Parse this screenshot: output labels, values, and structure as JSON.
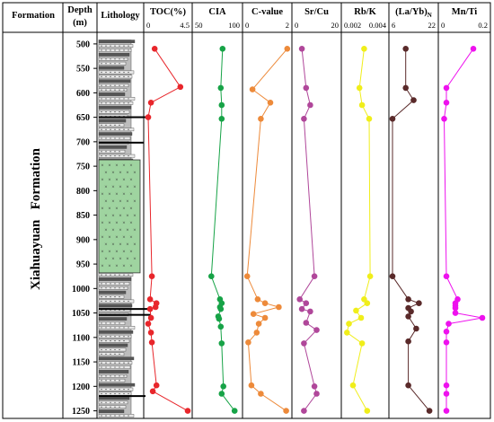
{
  "header": {
    "formation": "Formation",
    "depth_line1": "Depth",
    "depth_line2": "(m)",
    "lithology": "Lithology"
  },
  "formation_name": "Xiahuayuan   Formation",
  "chart_data": {
    "type": "line",
    "depth_axis": {
      "label": "Depth (m)",
      "range": [
        480,
        1260
      ],
      "ticks": [
        500,
        550,
        600,
        650,
        700,
        750,
        800,
        850,
        900,
        950,
        1000,
        1050,
        1100,
        1150,
        1200,
        1250
      ],
      "inverted": true
    },
    "lithology": {
      "sandstone_interval_m": [
        737,
        968
      ],
      "sandstone_fill": "#9fd4a0"
    },
    "panels": [
      {
        "title": "TOC(%)",
        "xmin": 0,
        "xmax": 4.5,
        "tick_labels": [
          "0",
          "4.5"
        ],
        "color": "#e8262b",
        "points": [
          [
            0.8,
            510
          ],
          [
            3.6,
            588
          ],
          [
            0.4,
            620
          ],
          [
            0.1,
            650
          ],
          [
            0.5,
            975
          ],
          [
            0.3,
            1022
          ],
          [
            1.0,
            1030
          ],
          [
            0.9,
            1038
          ],
          [
            0.3,
            1042
          ],
          [
            0.4,
            1060
          ],
          [
            0.1,
            1072
          ],
          [
            0.4,
            1090
          ],
          [
            0.5,
            1110
          ],
          [
            1.0,
            1198
          ],
          [
            0.6,
            1210
          ],
          [
            4.4,
            1250
          ]
        ]
      },
      {
        "title": "CIA",
        "xmin": 50,
        "xmax": 100,
        "tick_labels": [
          "50",
          "100"
        ],
        "color": "#17a347",
        "points": [
          [
            81,
            510
          ],
          [
            79,
            590
          ],
          [
            80,
            625
          ],
          [
            80,
            653
          ],
          [
            68,
            975
          ],
          [
            78,
            1022
          ],
          [
            80,
            1030
          ],
          [
            78,
            1038
          ],
          [
            79,
            1042
          ],
          [
            76,
            1057
          ],
          [
            77,
            1062
          ],
          [
            79,
            1078
          ],
          [
            80,
            1112
          ],
          [
            82,
            1200
          ],
          [
            80,
            1215
          ],
          [
            95,
            1250
          ]
        ]
      },
      {
        "title": "C-value",
        "xmin": 0,
        "xmax": 2,
        "tick_labels": [
          "0",
          "2"
        ],
        "color": "#ed8a3a",
        "points": [
          [
            1.95,
            510
          ],
          [
            0.3,
            593
          ],
          [
            1.15,
            620
          ],
          [
            0.7,
            653
          ],
          [
            0.05,
            975
          ],
          [
            0.55,
            1022
          ],
          [
            0.9,
            1030
          ],
          [
            1.55,
            1038
          ],
          [
            0.35,
            1052
          ],
          [
            0.9,
            1060
          ],
          [
            0.6,
            1072
          ],
          [
            0.5,
            1090
          ],
          [
            0.1,
            1110
          ],
          [
            0.25,
            1198
          ],
          [
            0.7,
            1215
          ],
          [
            1.9,
            1250
          ]
        ]
      },
      {
        "title": "Sr/Cu",
        "xmin": 0,
        "xmax": 20,
        "tick_labels": [
          "0",
          "20"
        ],
        "color": "#b0479a",
        "points": [
          [
            3,
            510
          ],
          [
            5,
            590
          ],
          [
            7,
            625
          ],
          [
            4,
            653
          ],
          [
            9,
            975
          ],
          [
            2,
            1022
          ],
          [
            5,
            1030
          ],
          [
            3,
            1042
          ],
          [
            7,
            1047
          ],
          [
            5,
            1070
          ],
          [
            10,
            1085
          ],
          [
            4,
            1112
          ],
          [
            9,
            1200
          ],
          [
            10,
            1215
          ],
          [
            4,
            1250
          ]
        ]
      },
      {
        "title": "Rb/K",
        "xmin": 0.002,
        "xmax": 0.004,
        "tick_labels": [
          "0.002",
          "0.004"
        ],
        "color": "#f0ee1a",
        "points": [
          [
            0.00295,
            510
          ],
          [
            0.00272,
            590
          ],
          [
            0.00285,
            625
          ],
          [
            0.0032,
            653
          ],
          [
            0.00325,
            975
          ],
          [
            0.00295,
            1022
          ],
          [
            0.0031,
            1030
          ],
          [
            0.00255,
            1045
          ],
          [
            0.0028,
            1060
          ],
          [
            0.0022,
            1072
          ],
          [
            0.0021,
            1090
          ],
          [
            0.00285,
            1112
          ],
          [
            0.0024,
            1198
          ],
          [
            0.0031,
            1250
          ]
        ]
      },
      {
        "title": "(La/Yb)N",
        "xmin": 6,
        "xmax": 22,
        "tick_labels": [
          "6",
          "22"
        ],
        "color": "#5a2a2a",
        "points": [
          [
            11,
            510
          ],
          [
            11,
            590
          ],
          [
            14,
            615
          ],
          [
            6,
            653
          ],
          [
            6,
            975
          ],
          [
            12,
            1022
          ],
          [
            16,
            1030
          ],
          [
            12,
            1040
          ],
          [
            13,
            1047
          ],
          [
            12,
            1057
          ],
          [
            15,
            1082
          ],
          [
            12,
            1108
          ],
          [
            12,
            1198
          ],
          [
            20,
            1250
          ]
        ]
      },
      {
        "title": "Mn/Ti",
        "xmin": 0,
        "xmax": 0.2,
        "tick_labels": [
          "0",
          "0.2"
        ],
        "color": "#ee11ee",
        "points": [
          [
            0.14,
            510
          ],
          [
            0.02,
            590
          ],
          [
            0.02,
            620
          ],
          [
            0.01,
            653
          ],
          [
            0.02,
            975
          ],
          [
            0.07,
            1022
          ],
          [
            0.06,
            1030
          ],
          [
            0.06,
            1035
          ],
          [
            0.06,
            1040
          ],
          [
            0.06,
            1050
          ],
          [
            0.18,
            1060
          ],
          [
            0.03,
            1072
          ],
          [
            0.02,
            1088
          ],
          [
            0.02,
            1110
          ],
          [
            0.02,
            1198
          ],
          [
            0.02,
            1215
          ],
          [
            0.02,
            1250
          ]
        ]
      }
    ]
  }
}
